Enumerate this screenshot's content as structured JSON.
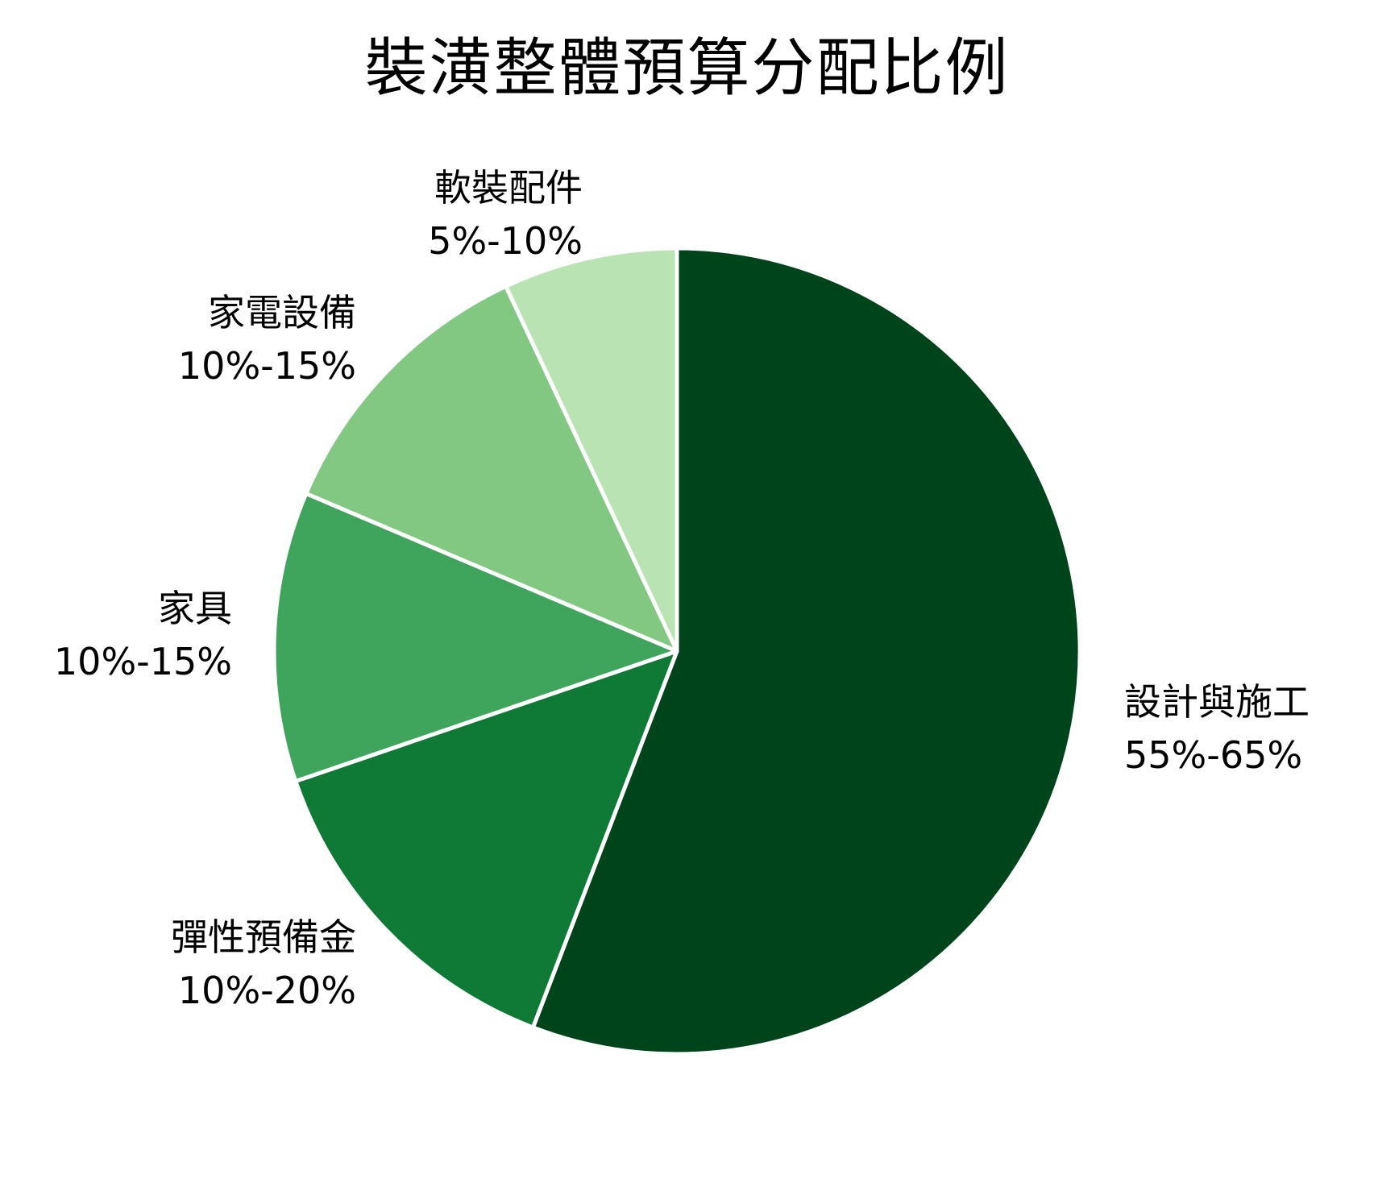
{
  "chart_data": {
    "type": "pie",
    "title": "裝潢整體預算分配比例",
    "start_angle": 90,
    "direction": "clockwise",
    "slices": [
      {
        "label": "設計與施工",
        "range": "55%-65%",
        "value": 60,
        "color": "#00441b"
      },
      {
        "label": "彈性預備金",
        "range": "10%-20%",
        "value": 15,
        "color": "#0f7a36"
      },
      {
        "label": "家具",
        "range": "10%-15%",
        "value": 12.5,
        "color": "#3fa45c"
      },
      {
        "label": "家電設備",
        "range": "10%-15%",
        "value": 12.5,
        "color": "#82c882"
      },
      {
        "label": "軟裝配件",
        "range": "5%-10%",
        "value": 7.5,
        "color": "#b9e3b3"
      }
    ],
    "edge_color": "#ffffff",
    "legend": "none"
  }
}
